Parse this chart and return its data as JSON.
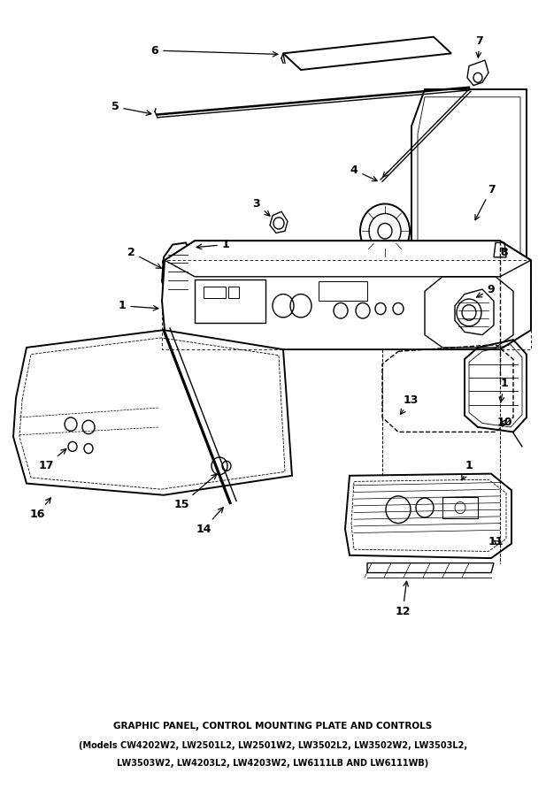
{
  "title_line1": "GRAPHIC PANEL, CONTROL MOUNTING PLATE AND CONTROLS",
  "title_line2": "(Models CW4202W2, LW2501L2, LW2501W2, LW3502L2, LW3502W2, LW3503L2,",
  "title_line3": "LW3503W2, LW4203L2, LW4203W2, LW6111LB AND LW6111WB)",
  "bg_color": "#ffffff",
  "fig_width": 6.17,
  "fig_height": 9.0,
  "dpi": 100,
  "title_fontsize": 7.5,
  "label_fontsize": 9
}
